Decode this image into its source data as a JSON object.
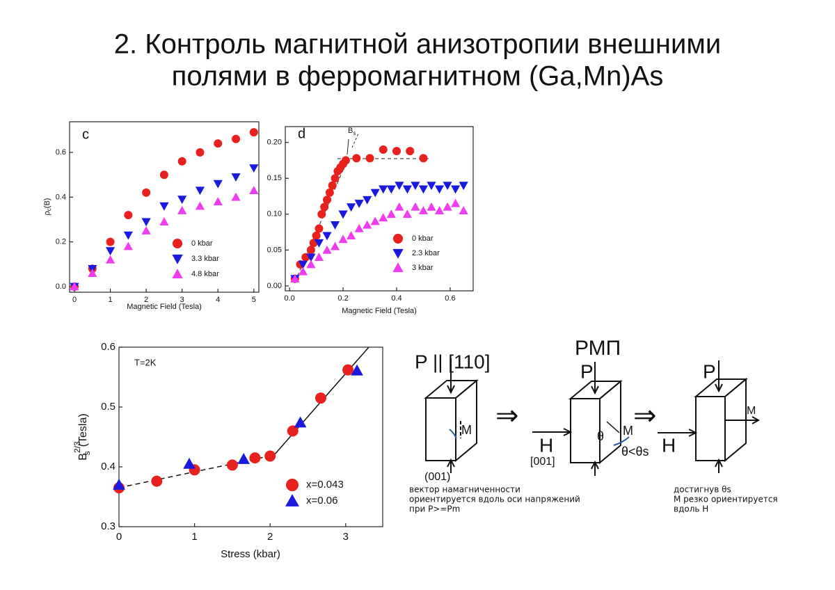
{
  "title": [
    "2. Контроль магнитной анизотропии внешними",
    "полями в ферромагнитном (Ga,Mn)As"
  ],
  "chart_data": [
    {
      "type": "scatter",
      "panel": "c",
      "xlabel": "Magnetic Field (Tesla)",
      "ylabel": "ρ",
      "ylabel_sub": "c",
      "ylabel_tail": "(B)",
      "xlim": [
        -0.136,
        5.14
      ],
      "ylim": [
        -0.025,
        0.737
      ],
      "xticks": [
        0,
        1,
        2,
        3,
        4,
        5
      ],
      "yticks": [
        {
          "value": 0,
          "label": "0.0"
        },
        0.2,
        0.4,
        0.6
      ],
      "legend": "lower right",
      "series": [
        {
          "name": "0 kbar",
          "color": "#e8201e",
          "marker": "circle",
          "x": [
            0,
            0.5,
            1,
            1.5,
            2,
            2.5,
            3,
            3.5,
            4,
            4.5,
            5
          ],
          "values": [
            0,
            0.08,
            0.2,
            0.32,
            0.42,
            0.5,
            0.56,
            0.6,
            0.64,
            0.66,
            0.69
          ]
        },
        {
          "name": "3.3 kbar",
          "color": "#1a1adf",
          "marker": "triangle-down",
          "x": [
            0,
            0.5,
            1,
            1.5,
            2,
            2.5,
            3,
            3.5,
            4,
            4.5,
            5
          ],
          "values": [
            0,
            0.08,
            0.16,
            0.23,
            0.29,
            0.36,
            0.39,
            0.43,
            0.46,
            0.49,
            0.53
          ]
        },
        {
          "name": "4.8 kbar",
          "color": "#f03cf0",
          "marker": "triangle-up",
          "x": [
            0,
            0.5,
            1,
            1.5,
            2,
            2.5,
            3,
            3.5,
            4,
            4.5,
            5
          ],
          "values": [
            0,
            0.06,
            0.12,
            0.18,
            0.25,
            0.29,
            0.34,
            0.36,
            0.38,
            0.4,
            0.43
          ]
        }
      ]
    },
    {
      "type": "scatter",
      "panel": "d",
      "xlabel": "Magnetic Field (Tesla)",
      "annotation": "B",
      "annotation_sub": "s",
      "xlim": [
        -0.016,
        0.686
      ],
      "ylim": [
        -0.0068,
        0.222
      ],
      "xticks": [
        {
          "value": 0,
          "label": "0.0"
        },
        0.2,
        0.4,
        0.6
      ],
      "yticks": [
        {
          "value": 0,
          "label": "0.00"
        },
        0.05,
        {
          "value": 0.1,
          "label": "0.10"
        },
        0.15,
        {
          "value": 0.2,
          "label": "0.20"
        }
      ],
      "legend": "lower right",
      "series": [
        {
          "name": "0 kbar",
          "color": "#e8201e",
          "marker": "circle",
          "x": [
            0.02,
            0.04,
            0.06,
            0.08,
            0.09,
            0.1,
            0.11,
            0.12,
            0.13,
            0.14,
            0.15,
            0.16,
            0.17,
            0.18,
            0.19,
            0.2,
            0.21,
            0.25,
            0.3,
            0.35,
            0.4,
            0.45,
            0.5
          ],
          "values": [
            0.01,
            0.03,
            0.04,
            0.05,
            0.06,
            0.07,
            0.08,
            0.1,
            0.11,
            0.12,
            0.13,
            0.14,
            0.15,
            0.16,
            0.165,
            0.17,
            0.175,
            0.178,
            0.178,
            0.19,
            0.188,
            0.188,
            0.178
          ]
        },
        {
          "name": "2.3 kbar",
          "color": "#1a1adf",
          "marker": "triangle-down",
          "x": [
            0.02,
            0.05,
            0.08,
            0.11,
            0.14,
            0.17,
            0.2,
            0.23,
            0.26,
            0.29,
            0.32,
            0.35,
            0.38,
            0.41,
            0.44,
            0.47,
            0.5,
            0.53,
            0.56,
            0.59,
            0.62,
            0.65
          ],
          "values": [
            0.01,
            0.03,
            0.04,
            0.06,
            0.07,
            0.085,
            0.1,
            0.11,
            0.115,
            0.12,
            0.13,
            0.135,
            0.135,
            0.14,
            0.135,
            0.14,
            0.135,
            0.14,
            0.135,
            0.14,
            0.135,
            0.14
          ]
        },
        {
          "name": "3 kbar",
          "color": "#f03cf0",
          "marker": "triangle-up",
          "x": [
            0.02,
            0.05,
            0.08,
            0.11,
            0.14,
            0.17,
            0.2,
            0.23,
            0.26,
            0.29,
            0.32,
            0.35,
            0.38,
            0.41,
            0.44,
            0.47,
            0.5,
            0.53,
            0.56,
            0.59,
            0.62,
            0.65
          ],
          "values": [
            0.01,
            0.02,
            0.03,
            0.04,
            0.05,
            0.055,
            0.065,
            0.07,
            0.08,
            0.085,
            0.09,
            0.095,
            0.1,
            0.11,
            0.1,
            0.11,
            0.105,
            0.11,
            0.105,
            0.11,
            0.115,
            0.105
          ]
        }
      ]
    },
    {
      "type": "scatter",
      "annotation": "T=2K",
      "xlabel": "Stress (kbar)",
      "ylabel": "B",
      "ylabel_sup": "2/3",
      "ylabel_sub": "s",
      "ylabel_tail": "(Tesla)",
      "xlim": [
        0,
        3.49
      ],
      "ylim": [
        0.3,
        0.6
      ],
      "xticks": [
        0,
        1,
        2,
        3
      ],
      "yticks": [
        0.3,
        0.4,
        0.5,
        0.6
      ],
      "legend": "lower right",
      "series": [
        {
          "name": "x=0.043",
          "color": "#e8201e",
          "marker": "circle",
          "x": [
            0,
            0.5,
            1,
            1.5,
            1.8,
            2,
            2.3,
            2.67,
            3.03
          ],
          "values": [
            0.365,
            0.376,
            0.395,
            0.403,
            0.415,
            0.418,
            0.46,
            0.515,
            0.562
          ]
        },
        {
          "name": "x=0.06",
          "color": "#1a1adf",
          "marker": "triangle-up",
          "x": [
            0,
            0.93,
            1.65,
            2.4,
            3.15
          ],
          "values": [
            0.37,
            0.405,
            0.413,
            0.474,
            0.561
          ]
        }
      ]
    }
  ],
  "diagram": {
    "p_110": "P || [110]",
    "m1": "M",
    "face_001": "(001)",
    "desc1": [
      "вектор намагниченности",
      "ориентируется вдоль оси напряжений",
      "при P>=Pm"
    ],
    "rmp": "РМП",
    "p2": "P",
    "h2": "H",
    "axis_001": "[001]",
    "theta1": "θ",
    "m2": "M",
    "theta_compare": "θ<θs",
    "p3": "P",
    "h3": "H",
    "m3": "M",
    "implies": "⇒",
    "desc2": [
      "достигнув θs",
      "М резко ориентируется",
      "вдоль Н"
    ]
  }
}
